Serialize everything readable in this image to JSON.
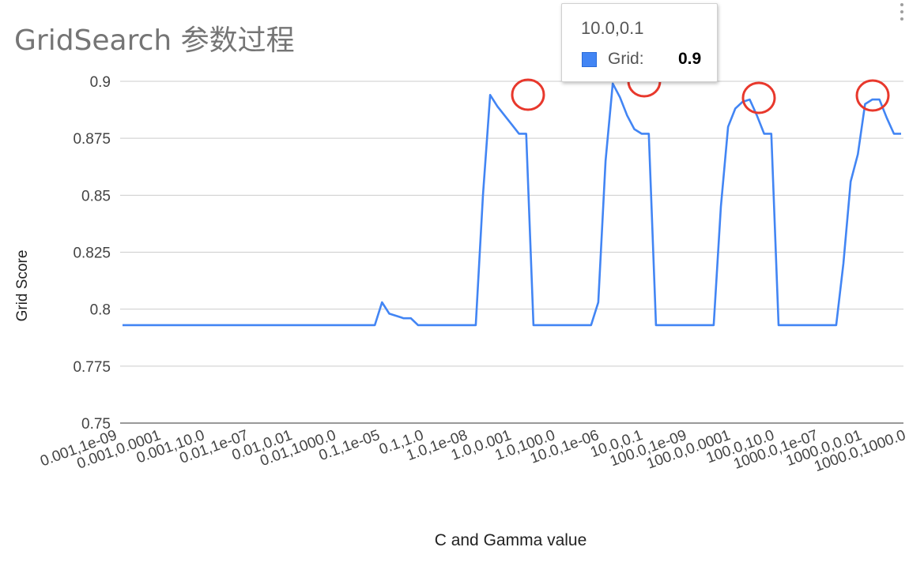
{
  "chart_data": {
    "type": "line",
    "title": "GridSearch 参数过程",
    "xlabel": "C and Gamma value",
    "ylabel": "Grid Score",
    "ylim": [
      0.75,
      0.9
    ],
    "y_ticks": [
      "0.9",
      "0.875",
      "0.85",
      "0.825",
      "0.8",
      "0.775",
      "0.75"
    ],
    "x_tick_labels": [
      "0.001,1e-09",
      "0.001,0.0001",
      "0.001,10.0",
      "0.01,1e-07",
      "0.01,0.01",
      "0.01,1000.0",
      "0.1,1e-05",
      "0.1,1.0",
      "1.0,1e-08",
      "1.0,0.001",
      "1.0,100.0",
      "10.0,1e-06",
      "10.0,0.1",
      "100.0,1e-09",
      "100.0,0.0001",
      "100.0,10.0",
      "1000.0,1e-07",
      "1000.0,0.01",
      "1000.0,1000.0"
    ],
    "grid": true,
    "legend": "none",
    "series": [
      {
        "name": "Grid",
        "color": "#4285f4",
        "values": [
          0.793,
          0.793,
          0.793,
          0.793,
          0.793,
          0.793,
          0.793,
          0.793,
          0.793,
          0.793,
          0.793,
          0.793,
          0.793,
          0.793,
          0.793,
          0.793,
          0.793,
          0.793,
          0.793,
          0.793,
          0.793,
          0.793,
          0.793,
          0.793,
          0.793,
          0.793,
          0.793,
          0.793,
          0.793,
          0.793,
          0.793,
          0.793,
          0.793,
          0.793,
          0.793,
          0.793,
          0.803,
          0.798,
          0.797,
          0.796,
          0.796,
          0.793,
          0.793,
          0.793,
          0.793,
          0.793,
          0.793,
          0.793,
          0.793,
          0.793,
          0.85,
          0.894,
          0.889,
          0.885,
          0.881,
          0.877,
          0.877,
          0.793,
          0.793,
          0.793,
          0.793,
          0.793,
          0.793,
          0.793,
          0.793,
          0.793,
          0.803,
          0.865,
          0.899,
          0.893,
          0.885,
          0.879,
          0.877,
          0.877,
          0.793,
          0.793,
          0.793,
          0.793,
          0.793,
          0.793,
          0.793,
          0.793,
          0.793,
          0.845,
          0.88,
          0.888,
          0.891,
          0.892,
          0.885,
          0.877,
          0.877,
          0.793,
          0.793,
          0.793,
          0.793,
          0.793,
          0.793,
          0.793,
          0.793,
          0.793,
          0.82,
          0.856,
          0.868,
          0.89,
          0.892,
          0.892,
          0.884,
          0.877,
          0.877
        ]
      }
    ],
    "tooltip": {
      "header": "10.0,0.1",
      "series": "Grid",
      "value": "0.9"
    },
    "highlights": [
      "0.001",
      "0.1",
      "10.0",
      "0.01"
    ]
  }
}
